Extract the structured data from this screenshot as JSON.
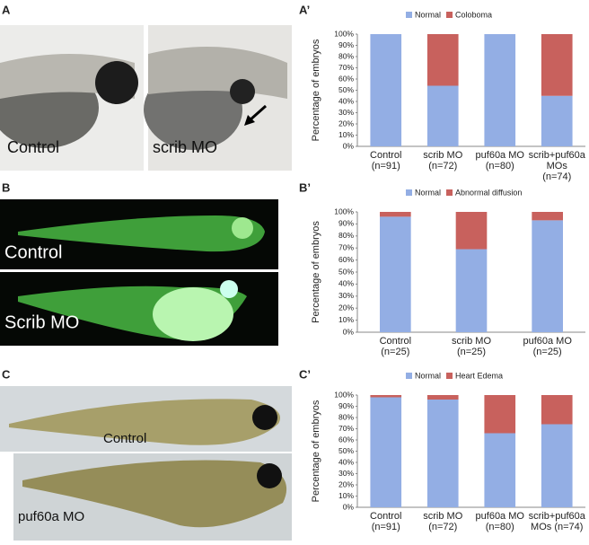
{
  "panels": [
    {
      "label": "A",
      "captions": [
        "Control",
        "scrib MO"
      ]
    },
    {
      "label": "B",
      "captions": [
        "Control",
        "Scrib MO"
      ]
    },
    {
      "label": "C",
      "captions": [
        "Control",
        "puf60a MO"
      ]
    }
  ],
  "chart_data": [
    {
      "type": "bar",
      "stacked": true,
      "panel_label": "A’",
      "ylabel": "Percentage of embryos",
      "legend": "top",
      "categories": [
        "Control\n(n=91)",
        "scrib MO\n(n=72)",
        "puf60a MO\n(n=80)",
        "scrib+puf60a\nMOs\n(n=74)"
      ],
      "series": [
        {
          "name": "Normal",
          "color": "#93aee4",
          "values": [
            100,
            54,
            100,
            45
          ]
        },
        {
          "name": "Coloboma",
          "color": "#c8615d",
          "values": [
            0,
            46,
            0,
            55
          ]
        }
      ],
      "ylim": [
        0,
        100
      ],
      "yticks": [
        {
          "value": 0,
          "label": "0%"
        },
        {
          "value": 10,
          "label": "10%"
        },
        {
          "value": 20,
          "label": "20%"
        },
        {
          "value": 30,
          "label": "30%"
        },
        {
          "value": 40,
          "label": "40%"
        },
        {
          "value": 50,
          "label": "50%"
        },
        {
          "value": 60,
          "label": "60%"
        },
        {
          "value": 70,
          "label": "70%"
        },
        {
          "value": 80,
          "label": "80%"
        },
        {
          "value": 90,
          "label": "90%"
        },
        {
          "value": 100,
          "label": "100%"
        }
      ]
    },
    {
      "type": "bar",
      "stacked": true,
      "panel_label": "B’",
      "ylabel": "Percentage of embryos",
      "legend": "top",
      "categories": [
        "Control\n(n=25)",
        "scrib MO\n(n=25)",
        "puf60a MO\n(n=25)"
      ],
      "series": [
        {
          "name": "Normal",
          "color": "#93aee4",
          "values": [
            96,
            69,
            93
          ]
        },
        {
          "name": "Abnormal diffusion",
          "color": "#c8615d",
          "values": [
            4,
            31,
            7
          ]
        }
      ],
      "ylim": [
        0,
        100
      ],
      "yticks": [
        {
          "value": 0,
          "label": "0%"
        },
        {
          "value": 10,
          "label": "10%"
        },
        {
          "value": 20,
          "label": "20%"
        },
        {
          "value": 30,
          "label": "30%"
        },
        {
          "value": 40,
          "label": "40%"
        },
        {
          "value": 50,
          "label": "50%"
        },
        {
          "value": 60,
          "label": "60%"
        },
        {
          "value": 70,
          "label": "70%"
        },
        {
          "value": 80,
          "label": "80%"
        },
        {
          "value": 90,
          "label": "90%"
        },
        {
          "value": 100,
          "label": "100%"
        }
      ]
    },
    {
      "type": "bar",
      "stacked": true,
      "panel_label": "C’",
      "ylabel": "Percentage of embryos",
      "legend": "top",
      "categories": [
        "Control\n(n=91)",
        "scrib MO\n(n=72)",
        "puf60a MO\n(n=80)",
        "scrib+puf60a\nMOs (n=74)"
      ],
      "series": [
        {
          "name": "Normal",
          "color": "#93aee4",
          "values": [
            98,
            96,
            66,
            74
          ]
        },
        {
          "name": "Heart Edema",
          "color": "#c8615d",
          "values": [
            2,
            4,
            34,
            26
          ]
        }
      ],
      "ylim": [
        0,
        100
      ],
      "yticks": [
        {
          "value": 0,
          "label": "0%"
        },
        {
          "value": 10,
          "label": "10%"
        },
        {
          "value": 20,
          "label": "20%"
        },
        {
          "value": 30,
          "label": "30%"
        },
        {
          "value": 40,
          "label": "40%"
        },
        {
          "value": 50,
          "label": "50%"
        },
        {
          "value": 60,
          "label": "60%"
        },
        {
          "value": 70,
          "label": "70%"
        },
        {
          "value": 80,
          "label": "80%"
        },
        {
          "value": 90,
          "label": "90%"
        },
        {
          "value": 100,
          "label": "100%"
        }
      ]
    }
  ]
}
